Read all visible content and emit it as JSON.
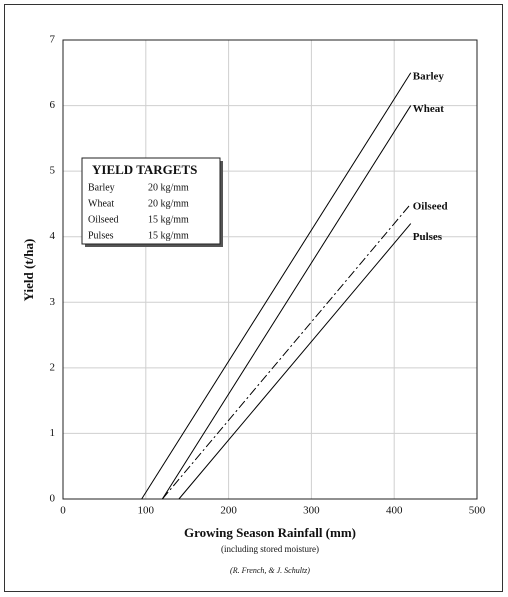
{
  "chart_data": {
    "type": "line",
    "x_label": "Growing Season Rainfall (mm)",
    "x_sublabel": "(including stored moisture)",
    "credit": "(R. French, & J. Schultz)",
    "y_label": "Yield (t/ha)",
    "xlim": [
      0,
      500
    ],
    "xticks": [
      0,
      100,
      200,
      300,
      400,
      500
    ],
    "ylim": [
      0,
      7
    ],
    "yticks": [
      0,
      1,
      2,
      3,
      4,
      5,
      6,
      7
    ],
    "grid": true,
    "series": [
      {
        "name": "Barley",
        "color": "#000000",
        "style": "solid",
        "x": [
          95,
          420
        ],
        "values": [
          0,
          6.5
        ]
      },
      {
        "name": "Wheat",
        "color": "#000000",
        "style": "solid",
        "x": [
          120,
          420
        ],
        "values": [
          0,
          6.0
        ]
      },
      {
        "name": "Oilseed",
        "color": "#000000",
        "style": "dashdot",
        "x": [
          120,
          420
        ],
        "values": [
          0,
          4.5
        ]
      },
      {
        "name": "Pulses",
        "color": "#000000",
        "style": "solid",
        "x": [
          140,
          420
        ],
        "values": [
          0,
          4.2
        ]
      }
    ],
    "targets": {
      "title": "YIELD TARGETS",
      "rows": [
        [
          "Barley",
          "20 kg/mm"
        ],
        [
          "Wheat",
          "20 kg/mm"
        ],
        [
          "Oilseed",
          "15 kg/mm"
        ],
        [
          "Pulses",
          "15 kg/mm"
        ]
      ]
    }
  }
}
